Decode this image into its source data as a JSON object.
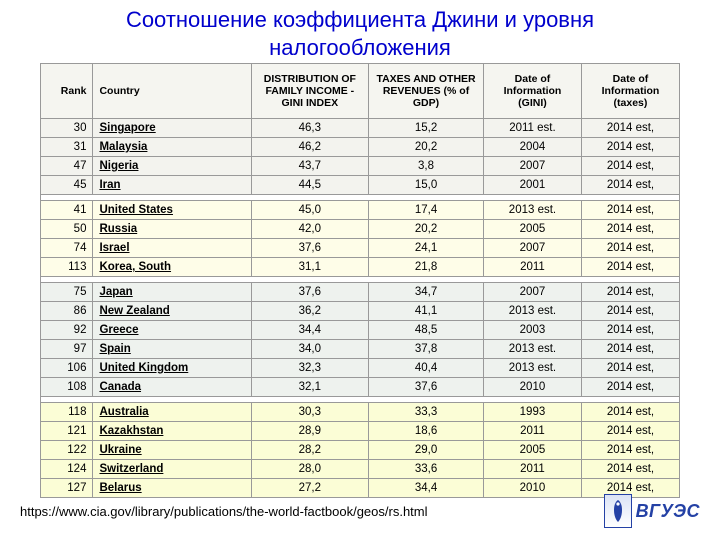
{
  "title": "Соотношение коэффициента Джини и уровня налогообложения",
  "source": "https://www.cia.gov/library/publications/the-world-factbook/geos/rs.html",
  "logo_text": "ВГУЭС",
  "columns": {
    "rank": "Rank",
    "country": "Country",
    "gini": "DISTRIBUTION OF FAMILY INCOME - GINI INDEX",
    "tax": "TAXES AND OTHER REVENUES (% of GDP)",
    "date_gini": "Date of Information (GINI)",
    "date_tax": "Date of Information (taxes)"
  },
  "groups": [
    {
      "tint": 0,
      "rows": [
        {
          "rank": 30,
          "country": "Singapore",
          "gini": "46,3",
          "tax": "15,2",
          "d1": "2011 est.",
          "d2": "2014 est,"
        },
        {
          "rank": 31,
          "country": "Malaysia",
          "gini": "46,2",
          "tax": "20,2",
          "d1": "2004",
          "d2": "2014 est,"
        },
        {
          "rank": 47,
          "country": "Nigeria",
          "gini": "43,7",
          "tax": "3,8",
          "d1": "2007",
          "d2": "2014 est,"
        },
        {
          "rank": 45,
          "country": "Iran",
          "gini": "44,5",
          "tax": "15,0",
          "d1": "2001",
          "d2": "2014 est,"
        }
      ]
    },
    {
      "tint": 1,
      "rows": [
        {
          "rank": 41,
          "country": "United States",
          "gini": "45,0",
          "tax": "17,4",
          "d1": "2013 est.",
          "d2": "2014 est,"
        },
        {
          "rank": 50,
          "country": "Russia",
          "gini": "42,0",
          "tax": "20,2",
          "d1": "2005",
          "d2": "2014 est,"
        },
        {
          "rank": 74,
          "country": "Israel",
          "gini": "37,6",
          "tax": "24,1",
          "d1": "2007",
          "d2": "2014 est,"
        },
        {
          "rank": 113,
          "country": "Korea, South",
          "gini": "31,1",
          "tax": "21,8",
          "d1": "2011",
          "d2": "2014 est,"
        }
      ]
    },
    {
      "tint": 2,
      "rows": [
        {
          "rank": 75,
          "country": "Japan",
          "gini": "37,6",
          "tax": "34,7",
          "d1": "2007",
          "d2": "2014 est,"
        },
        {
          "rank": 86,
          "country": "New Zealand",
          "gini": "36,2",
          "tax": "41,1",
          "d1": "2013 est.",
          "d2": "2014 est,"
        },
        {
          "rank": 92,
          "country": "Greece",
          "gini": "34,4",
          "tax": "48,5",
          "d1": "2003",
          "d2": "2014 est,"
        },
        {
          "rank": 97,
          "country": "Spain",
          "gini": "34,0",
          "tax": "37,8",
          "d1": "2013 est.",
          "d2": "2014 est,"
        },
        {
          "rank": 106,
          "country": "United Kingdom",
          "gini": "32,3",
          "tax": "40,4",
          "d1": "2013 est.",
          "d2": "2014 est,"
        },
        {
          "rank": 108,
          "country": "Canada",
          "gini": "32,1",
          "tax": "37,6",
          "d1": "2010",
          "d2": "2014 est,"
        }
      ]
    },
    {
      "tint": 3,
      "rows": [
        {
          "rank": 118,
          "country": "Australia",
          "gini": "30,3",
          "tax": "33,3",
          "d1": "1993",
          "d2": "2014 est,"
        },
        {
          "rank": 121,
          "country": "Kazakhstan",
          "gini": "28,9",
          "tax": "18,6",
          "d1": "2011",
          "d2": "2014 est,"
        },
        {
          "rank": 122,
          "country": "Ukraine",
          "gini": "28,2",
          "tax": "29,0",
          "d1": "2005",
          "d2": "2014 est,"
        },
        {
          "rank": 124,
          "country": "Switzerland",
          "gini": "28,0",
          "tax": "33,6",
          "d1": "2011",
          "d2": "2014 est,"
        },
        {
          "rank": 127,
          "country": "Belarus",
          "gini": "27,2",
          "tax": "34,4",
          "d1": "2010",
          "d2": "2014 est,"
        }
      ]
    }
  ]
}
